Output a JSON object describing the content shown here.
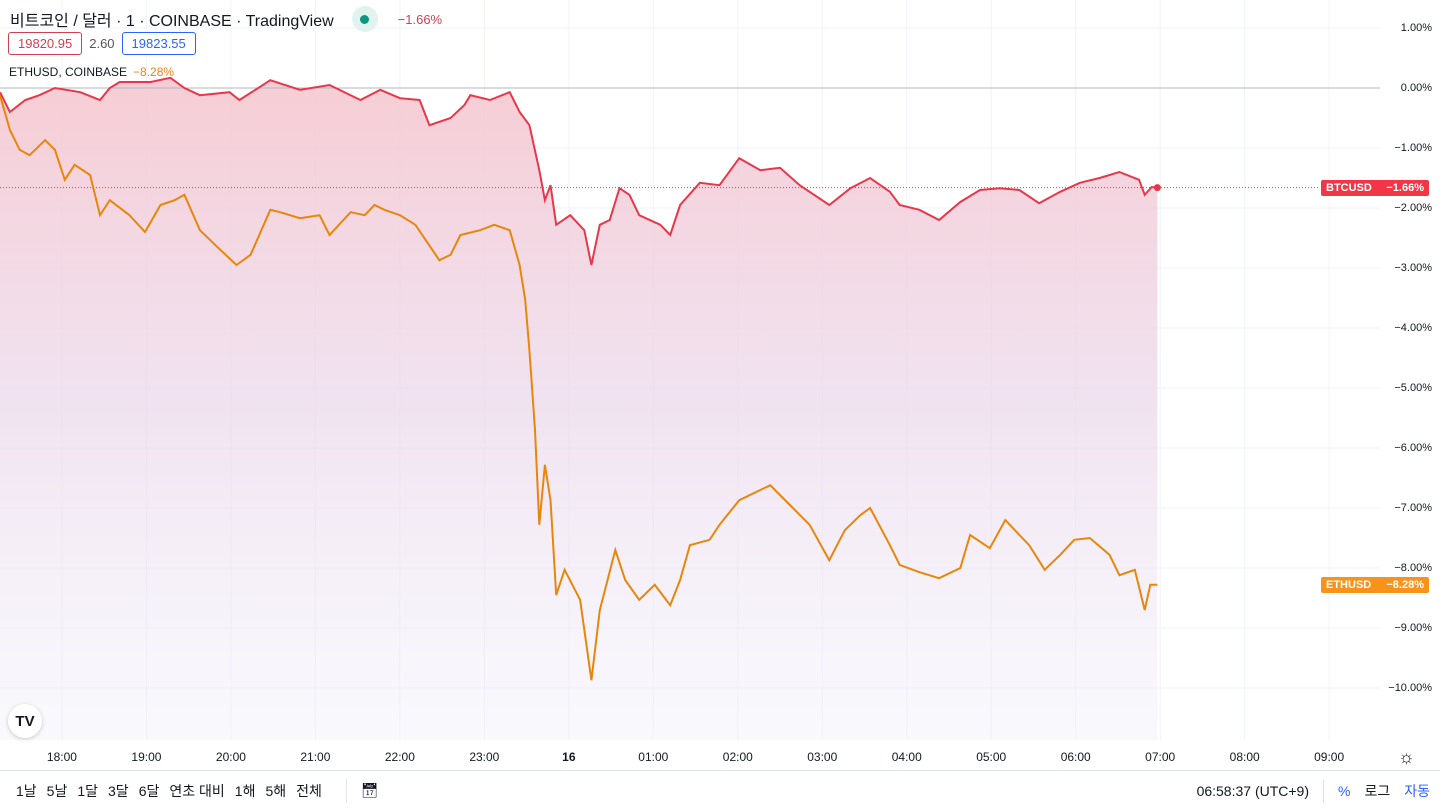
{
  "header": {
    "title": "비트코인 / 달러 · 1 · COINBASE · TradingView",
    "change": "−1.66%",
    "bid": "19820.95",
    "spread": "2.60",
    "ask": "19823.55",
    "compare": {
      "symbol": "ETHUSD, COINBASE",
      "change": "−8.28%"
    }
  },
  "price_tags": [
    {
      "label": "BTCUSD",
      "value": "−1.66%",
      "color": "#f23645"
    },
    {
      "label": "ETHUSD",
      "value": "−8.28%",
      "color": "#f7931a"
    }
  ],
  "colors": {
    "btc": "#e8374a",
    "eth": "#e8860c",
    "accent": "#2962ff"
  },
  "chart_data": {
    "type": "line",
    "x_unit": "minutes since 17:16",
    "xlim": [
      0,
      1000
    ],
    "ylim": [
      -10.8,
      1.45
    ],
    "x_ticks": [
      {
        "x": 44,
        "label": "18:00"
      },
      {
        "x": 104,
        "label": "19:00"
      },
      {
        "x": 164,
        "label": "20:00"
      },
      {
        "x": 224,
        "label": "21:00"
      },
      {
        "x": 284,
        "label": "22:00"
      },
      {
        "x": 344,
        "label": "23:00"
      },
      {
        "x": 404,
        "label": "16"
      },
      {
        "x": 464,
        "label": "01:00"
      },
      {
        "x": 524,
        "label": "02:00"
      },
      {
        "x": 584,
        "label": "03:00"
      },
      {
        "x": 644,
        "label": "04:00"
      },
      {
        "x": 704,
        "label": "05:00"
      },
      {
        "x": 764,
        "label": "06:00"
      },
      {
        "x": 824,
        "label": "07:00"
      },
      {
        "x": 884,
        "label": "08:00"
      },
      {
        "x": 944,
        "label": "09:00"
      }
    ],
    "y_ticks": [
      {
        "v": 1,
        "label": "1.00%"
      },
      {
        "v": 0,
        "label": "0.00%"
      },
      {
        "v": -1,
        "label": "−1.00%"
      },
      {
        "v": -2,
        "label": "−2.00%"
      },
      {
        "v": -3,
        "label": "−3.00%"
      },
      {
        "v": -4,
        "label": "−4.00%"
      },
      {
        "v": -5,
        "label": "−5.00%"
      },
      {
        "v": -6,
        "label": "−6.00%"
      },
      {
        "v": -7,
        "label": "−7.00%"
      },
      {
        "v": -8,
        "label": "−8.00%"
      },
      {
        "v": -9,
        "label": "−9.00%"
      },
      {
        "v": -10,
        "label": "−10.00%"
      }
    ],
    "series": [
      {
        "name": "BTCUSD",
        "points": [
          [
            0,
            -0.07
          ],
          [
            7,
            -0.4
          ],
          [
            18,
            -0.2
          ],
          [
            28,
            -0.12
          ],
          [
            39,
            0
          ],
          [
            57,
            -0.07
          ],
          [
            71,
            -0.2
          ],
          [
            78,
            0
          ],
          [
            85,
            0.1
          ],
          [
            107,
            0.1
          ],
          [
            121,
            0.17
          ],
          [
            131,
            0
          ],
          [
            142,
            -0.12
          ],
          [
            163,
            -0.07
          ],
          [
            170,
            -0.2
          ],
          [
            192,
            0.13
          ],
          [
            213,
            -0.03
          ],
          [
            234,
            0.05
          ],
          [
            256,
            -0.2
          ],
          [
            270,
            -0.03
          ],
          [
            284,
            -0.17
          ],
          [
            298,
            -0.2
          ],
          [
            305,
            -0.62
          ],
          [
            320,
            -0.5
          ],
          [
            330,
            -0.28
          ],
          [
            334,
            -0.12
          ],
          [
            348,
            -0.2
          ],
          [
            362,
            -0.07
          ],
          [
            369,
            -0.4
          ],
          [
            376,
            -0.62
          ],
          [
            383,
            -1.37
          ],
          [
            387,
            -1.87
          ],
          [
            391,
            -1.62
          ],
          [
            395,
            -2.28
          ],
          [
            405,
            -2.12
          ],
          [
            415,
            -2.37
          ],
          [
            420,
            -2.95
          ],
          [
            426,
            -2.28
          ],
          [
            433,
            -2.2
          ],
          [
            440,
            -1.67
          ],
          [
            447,
            -1.78
          ],
          [
            454,
            -2.12
          ],
          [
            469,
            -2.28
          ],
          [
            476,
            -2.45
          ],
          [
            483,
            -1.95
          ],
          [
            497,
            -1.58
          ],
          [
            511,
            -1.62
          ],
          [
            525,
            -1.17
          ],
          [
            540,
            -1.37
          ],
          [
            554,
            -1.33
          ],
          [
            568,
            -1.62
          ],
          [
            589,
            -1.95
          ],
          [
            604,
            -1.67
          ],
          [
            618,
            -1.5
          ],
          [
            632,
            -1.73
          ],
          [
            639,
            -1.95
          ],
          [
            653,
            -2.03
          ],
          [
            667,
            -2.2
          ],
          [
            682,
            -1.9
          ],
          [
            696,
            -1.7
          ],
          [
            710,
            -1.67
          ],
          [
            724,
            -1.7
          ],
          [
            738,
            -1.92
          ],
          [
            753,
            -1.73
          ],
          [
            767,
            -1.58
          ],
          [
            781,
            -1.5
          ],
          [
            795,
            -1.4
          ],
          [
            809,
            -1.53
          ],
          [
            813,
            -1.78
          ],
          [
            818,
            -1.65
          ],
          [
            822,
            -1.66
          ]
        ]
      },
      {
        "name": "ETHUSD",
        "points": [
          [
            0,
            -0.12
          ],
          [
            7,
            -0.7
          ],
          [
            14,
            -1.03
          ],
          [
            21,
            -1.12
          ],
          [
            32,
            -0.87
          ],
          [
            39,
            -1.03
          ],
          [
            46,
            -1.53
          ],
          [
            53,
            -1.28
          ],
          [
            64,
            -1.45
          ],
          [
            71,
            -2.12
          ],
          [
            78,
            -1.87
          ],
          [
            92,
            -2.12
          ],
          [
            103,
            -2.4
          ],
          [
            114,
            -1.95
          ],
          [
            124,
            -1.87
          ],
          [
            131,
            -1.78
          ],
          [
            142,
            -2.37
          ],
          [
            153,
            -2.62
          ],
          [
            168,
            -2.95
          ],
          [
            178,
            -2.78
          ],
          [
            192,
            -2.03
          ],
          [
            199,
            -2.07
          ],
          [
            213,
            -2.17
          ],
          [
            227,
            -2.12
          ],
          [
            234,
            -2.45
          ],
          [
            249,
            -2.07
          ],
          [
            259,
            -2.12
          ],
          [
            266,
            -1.95
          ],
          [
            273,
            -2.03
          ],
          [
            284,
            -2.12
          ],
          [
            295,
            -2.28
          ],
          [
            312,
            -2.87
          ],
          [
            320,
            -2.78
          ],
          [
            327,
            -2.45
          ],
          [
            341,
            -2.37
          ],
          [
            351,
            -2.28
          ],
          [
            362,
            -2.37
          ],
          [
            369,
            -2.95
          ],
          [
            373,
            -3.53
          ],
          [
            376,
            -4.37
          ],
          [
            380,
            -5.7
          ],
          [
            383,
            -7.28
          ],
          [
            387,
            -6.28
          ],
          [
            391,
            -6.87
          ],
          [
            395,
            -8.45
          ],
          [
            401,
            -8.03
          ],
          [
            412,
            -8.53
          ],
          [
            420,
            -9.87
          ],
          [
            426,
            -8.7
          ],
          [
            437,
            -7.7
          ],
          [
            444,
            -8.2
          ],
          [
            454,
            -8.53
          ],
          [
            465,
            -8.28
          ],
          [
            476,
            -8.62
          ],
          [
            483,
            -8.2
          ],
          [
            490,
            -7.62
          ],
          [
            504,
            -7.53
          ],
          [
            511,
            -7.28
          ],
          [
            525,
            -6.87
          ],
          [
            540,
            -6.7
          ],
          [
            547,
            -6.62
          ],
          [
            561,
            -6.95
          ],
          [
            575,
            -7.28
          ],
          [
            589,
            -7.87
          ],
          [
            600,
            -7.37
          ],
          [
            611,
            -7.12
          ],
          [
            618,
            -7.0
          ],
          [
            632,
            -7.62
          ],
          [
            639,
            -7.95
          ],
          [
            653,
            -8.07
          ],
          [
            667,
            -8.17
          ],
          [
            682,
            -8.0
          ],
          [
            689,
            -7.45
          ],
          [
            703,
            -7.67
          ],
          [
            714,
            -7.2
          ],
          [
            724,
            -7.45
          ],
          [
            731,
            -7.62
          ],
          [
            742,
            -8.03
          ],
          [
            753,
            -7.78
          ],
          [
            763,
            -7.53
          ],
          [
            774,
            -7.5
          ],
          [
            788,
            -7.78
          ],
          [
            795,
            -8.12
          ],
          [
            806,
            -8.03
          ],
          [
            813,
            -8.7
          ],
          [
            817,
            -8.28
          ],
          [
            822,
            -8.28
          ]
        ]
      }
    ]
  },
  "bottom": {
    "ranges": [
      "1날",
      "5날",
      "1달",
      "3달",
      "6달",
      "연초 대비",
      "1해",
      "5해",
      "전체"
    ],
    "time": "06:58:37 (UTC+9)",
    "percent": "%",
    "log": "로그",
    "auto": "자동"
  },
  "logo": "TV"
}
